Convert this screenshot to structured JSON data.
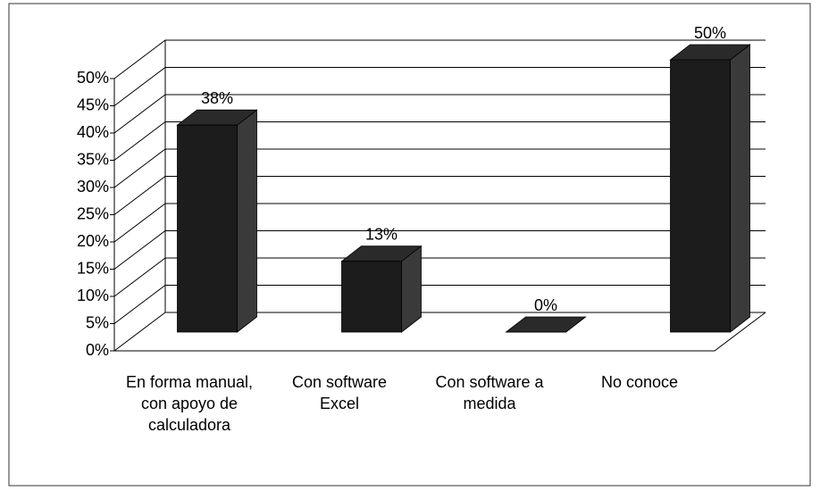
{
  "chart_data": {
    "type": "bar3d",
    "categories": [
      "En forma manual, con apoyo de calculadora",
      "Con software Excel",
      "Con software a medida",
      "No conoce"
    ],
    "values": [
      38,
      13,
      0,
      50
    ],
    "value_labels": [
      "38%",
      "13%",
      "0%",
      "50%"
    ],
    "color": "#1c1c1c",
    "ylim": [
      0,
      50
    ],
    "yticks": [
      {
        "value": 0,
        "label": "0%"
      },
      {
        "value": 5,
        "label": "5%"
      },
      {
        "value": 10,
        "label": "10%"
      },
      {
        "value": 15,
        "label": "15%"
      },
      {
        "value": 20,
        "label": "20%"
      },
      {
        "value": 25,
        "label": "25%"
      },
      {
        "value": 30,
        "label": "30%"
      },
      {
        "value": 35,
        "label": "35%"
      },
      {
        "value": 40,
        "label": "40%"
      },
      {
        "value": 45,
        "label": "45%"
      },
      {
        "value": 50,
        "label": "50%"
      }
    ],
    "grid": true
  }
}
